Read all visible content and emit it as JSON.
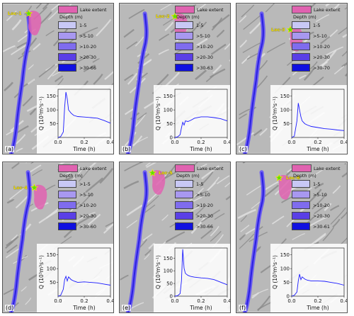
{
  "legend": {
    "lake_label": "Lake extent",
    "depth_title": "Depth (m)",
    "colors": [
      "#c8c8f5",
      "#a898f0",
      "#7f6cee",
      "#5a3fe6",
      "#1010e0"
    ],
    "lake_color": "#e062b0"
  },
  "axis": {
    "ylabel": "Q (10³m³s⁻¹)",
    "xlabel": "Time (h)",
    "xticks": [
      "0.0",
      "0.2",
      "0.4"
    ]
  },
  "panels": [
    {
      "letter": "(a)",
      "loc_label": "Loc-1",
      "depth_classes": [
        "1-5",
        ">5-10",
        ">10-20",
        ">20-30",
        ">30-66"
      ],
      "yticks": [
        "50",
        "100",
        "150"
      ]
    },
    {
      "letter": "(b)",
      "loc_label": "Loc-2",
      "depth_classes": [
        "1-5",
        ">5-10",
        ">10-20",
        ">20-30",
        ">30-63"
      ],
      "yticks": [
        "0",
        "50",
        "100",
        "150"
      ]
    },
    {
      "letter": "(c)",
      "loc_label": "Loc-3",
      "depth_classes": [
        "1-5",
        ">5-10",
        ">10-20",
        ">20-30",
        ">30-70"
      ],
      "yticks": [
        "50",
        "100",
        "150"
      ]
    },
    {
      "letter": "(d)",
      "loc_label": "Loc-4",
      "depth_classes": [
        ">1-5",
        ">5-10",
        ">10-20",
        ">20-30",
        ">30-60"
      ],
      "yticks": [
        "50",
        "100",
        "150"
      ]
    },
    {
      "letter": "(e)",
      "loc_label": "Loc-5",
      "depth_classes": [
        "1-5",
        ">5-10",
        ">10-20",
        ">20-30",
        ">30-66"
      ],
      "yticks": [
        "0",
        "50",
        "100",
        "150"
      ]
    },
    {
      "letter": "(f)",
      "loc_label": "Loc-6",
      "depth_classes": [
        "1-5",
        ">5-10",
        ">10-20",
        ">20-30",
        ">30-61"
      ],
      "yticks": [
        "0",
        "50",
        "100",
        "150"
      ]
    }
  ],
  "chart_data": [
    {
      "type": "line",
      "xlabel": "Time (h)",
      "ylabel": "Q (10³m³s⁻¹)",
      "xlim": [
        0,
        0.4
      ],
      "ylim": [
        0,
        175
      ],
      "grid": false,
      "x": [
        0.0,
        0.02,
        0.04,
        0.05,
        0.06,
        0.07,
        0.08,
        0.1,
        0.12,
        0.15,
        0.2,
        0.25,
        0.3,
        0.35,
        0.4
      ],
      "series": [
        {
          "values": [
            0,
            3,
            20,
            110,
            165,
            140,
            100,
            88,
            80,
            76,
            74,
            72,
            70,
            62,
            52
          ]
        }
      ]
    },
    {
      "type": "line",
      "xlabel": "Time (h)",
      "ylabel": "Q (10³m³s⁻¹)",
      "xlim": [
        0,
        0.4
      ],
      "ylim": [
        0,
        175
      ],
      "grid": false,
      "x": [
        0.0,
        0.02,
        0.04,
        0.05,
        0.06,
        0.07,
        0.08,
        0.1,
        0.12,
        0.15,
        0.2,
        0.25,
        0.3,
        0.35,
        0.4
      ],
      "series": [
        {
          "values": [
            0,
            2,
            10,
            35,
            55,
            45,
            60,
            58,
            62,
            70,
            75,
            75,
            72,
            68,
            60
          ]
        }
      ]
    },
    {
      "type": "line",
      "xlabel": "Time (h)",
      "ylabel": "Q (10³m³s⁻¹)",
      "xlim": [
        0,
        0.4
      ],
      "ylim": [
        0,
        175
      ],
      "grid": false,
      "x": [
        0.0,
        0.02,
        0.04,
        0.05,
        0.06,
        0.07,
        0.08,
        0.1,
        0.12,
        0.15,
        0.2,
        0.25,
        0.3,
        0.35,
        0.4
      ],
      "series": [
        {
          "values": [
            0,
            5,
            60,
            125,
            100,
            75,
            60,
            50,
            45,
            40,
            36,
            32,
            30,
            27,
            25
          ]
        }
      ]
    },
    {
      "type": "line",
      "xlabel": "Time (h)",
      "ylabel": "Q (10³m³s⁻¹)",
      "xlim": [
        0,
        0.4
      ],
      "ylim": [
        0,
        175
      ],
      "grid": false,
      "x": [
        0.0,
        0.02,
        0.04,
        0.05,
        0.06,
        0.07,
        0.08,
        0.1,
        0.12,
        0.15,
        0.2,
        0.25,
        0.3,
        0.35,
        0.4
      ],
      "series": [
        {
          "values": [
            0,
            3,
            25,
            60,
            72,
            55,
            70,
            60,
            55,
            50,
            52,
            50,
            48,
            44,
            40
          ]
        }
      ]
    },
    {
      "type": "line",
      "xlabel": "Time (h)",
      "ylabel": "Q (10³m³s⁻¹)",
      "xlim": [
        0,
        0.4
      ],
      "ylim": [
        0,
        190
      ],
      "grid": false,
      "x": [
        0.0,
        0.02,
        0.04,
        0.05,
        0.06,
        0.07,
        0.08,
        0.1,
        0.12,
        0.15,
        0.2,
        0.25,
        0.3,
        0.35,
        0.4
      ],
      "series": [
        {
          "values": [
            0,
            2,
            10,
            60,
            185,
            110,
            90,
            82,
            78,
            75,
            72,
            70,
            65,
            55,
            45
          ]
        }
      ]
    },
    {
      "type": "line",
      "xlabel": "Time (h)",
      "ylabel": "Q (10³m³s⁻¹)",
      "xlim": [
        0,
        0.4
      ],
      "ylim": [
        0,
        175
      ],
      "grid": false,
      "x": [
        0.0,
        0.02,
        0.04,
        0.05,
        0.06,
        0.07,
        0.08,
        0.1,
        0.12,
        0.15,
        0.2,
        0.25,
        0.3,
        0.35,
        0.4
      ],
      "series": [
        {
          "values": [
            0,
            3,
            15,
            55,
            80,
            60,
            70,
            62,
            58,
            55,
            55,
            54,
            50,
            46,
            40
          ]
        }
      ]
    }
  ]
}
